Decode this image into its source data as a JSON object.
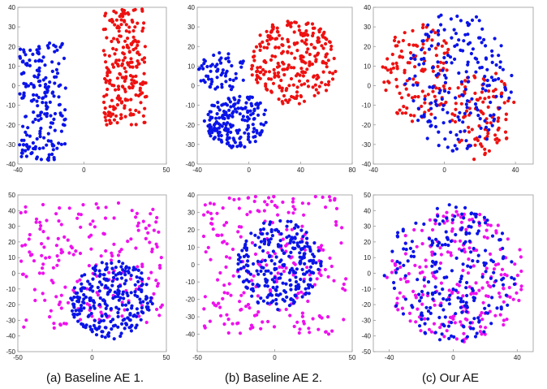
{
  "colors": {
    "blue": "#0a14e8",
    "red": "#ee1111",
    "magenta": "#ee11ee"
  },
  "captions": [
    "(a) Baseline AE 1.",
    "(b) Baseline AE 2.",
    "(c) Our AE"
  ],
  "chart_data": [
    {
      "type": "scatter",
      "xlim": [
        -40,
        50
      ],
      "ylim": [
        -40,
        40
      ],
      "xticks": [
        -40,
        0,
        50
      ],
      "yticks": [
        -40,
        -30,
        -20,
        -10,
        0,
        10,
        20,
        30,
        40
      ],
      "series": [
        {
          "color": "blue",
          "n": 200,
          "seed": 11,
          "clusters": [
            {
              "cx": -25,
              "cy": -8,
              "rx": 14,
              "ry": 30,
              "shape": "rect"
            }
          ]
        },
        {
          "color": "red",
          "n": 230,
          "seed": 12,
          "clusters": [
            {
              "cx": 25,
              "cy": 10,
              "rx": 13,
              "ry": 30,
              "shape": "rect"
            }
          ]
        }
      ]
    },
    {
      "type": "scatter",
      "xlim": [
        -40,
        80
      ],
      "ylim": [
        -40,
        40
      ],
      "xticks": [
        -40,
        0,
        40,
        80
      ],
      "yticks": [
        -40,
        -30,
        -20,
        -10,
        0,
        10,
        20,
        30,
        40
      ],
      "series": [
        {
          "color": "blue",
          "n": 250,
          "seed": 21,
          "clusters": [
            {
              "cx": -20,
              "cy": 7,
              "rx": 20,
              "ry": 10,
              "shape": "ellipse",
              "w": 0.25
            },
            {
              "cx": -10,
              "cy": -18,
              "rx": 25,
              "ry": 14,
              "shape": "ellipse",
              "w": 0.75
            }
          ]
        },
        {
          "color": "red",
          "n": 260,
          "seed": 22,
          "clusters": [
            {
              "cx": 35,
              "cy": 12,
              "rx": 34,
              "ry": 22,
              "shape": "ellipse"
            }
          ]
        }
      ]
    },
    {
      "type": "scatter",
      "xlim": [
        -40,
        50
      ],
      "ylim": [
        -40,
        40
      ],
      "xticks": [
        -40,
        0,
        40
      ],
      "yticks": [
        -40,
        -30,
        -20,
        -10,
        0,
        10,
        20,
        30,
        40
      ],
      "series": [
        {
          "color": "red",
          "n": 230,
          "seed": 31,
          "clusters": [
            {
              "cx": -15,
              "cy": 7,
              "rx": 20,
              "ry": 26,
              "shape": "ellipse",
              "w": 0.55
            },
            {
              "cx": 22,
              "cy": -15,
              "rx": 18,
              "ry": 24,
              "shape": "ellipse",
              "w": 0.45
            }
          ]
        },
        {
          "color": "blue",
          "n": 200,
          "seed": 32,
          "clusters": [
            {
              "cx": 8,
              "cy": 2,
              "rx": 30,
              "ry": 36,
              "shape": "ellipse"
            }
          ]
        }
      ]
    },
    {
      "type": "scatter",
      "xlim": [
        -50,
        50
      ],
      "ylim": [
        -50,
        50
      ],
      "xticks": [
        -50,
        0,
        50
      ],
      "yticks": [
        -50,
        -40,
        -30,
        -20,
        -10,
        0,
        10,
        20,
        30,
        40,
        50
      ],
      "series": [
        {
          "color": "magenta",
          "n": 200,
          "seed": 41,
          "clusters": [
            {
              "cx": 0,
              "cy": 5,
              "rx": 48,
              "ry": 40,
              "shape": "rect"
            }
          ]
        },
        {
          "color": "blue",
          "n": 260,
          "seed": 42,
          "clusters": [
            {
              "cx": 13,
              "cy": -17,
              "rx": 28,
              "ry": 25,
              "shape": "ellipse"
            }
          ]
        }
      ]
    },
    {
      "type": "scatter",
      "xlim": [
        -50,
        50
      ],
      "ylim": [
        -50,
        40
      ],
      "xticks": [
        -50,
        0,
        50
      ],
      "yticks": [
        -40,
        -30,
        -20,
        -10,
        0,
        10,
        20,
        30,
        40
      ],
      "series": [
        {
          "color": "magenta",
          "n": 230,
          "seed": 51,
          "clusters": [
            {
              "cx": 0,
              "cy": 0,
              "rx": 46,
              "ry": 40,
              "shape": "rect"
            }
          ]
        },
        {
          "color": "blue",
          "n": 260,
          "seed": 52,
          "clusters": [
            {
              "cx": 3,
              "cy": 0,
              "rx": 27,
              "ry": 26,
              "shape": "ellipse"
            }
          ]
        }
      ]
    },
    {
      "type": "scatter",
      "xlim": [
        -50,
        50
      ],
      "ylim": [
        -50,
        50
      ],
      "xticks": [
        -40,
        0,
        40
      ],
      "yticks": [
        -50,
        -40,
        -30,
        -20,
        -10,
        0,
        10,
        20,
        30,
        40,
        50
      ],
      "series": [
        {
          "color": "magenta",
          "n": 230,
          "seed": 61,
          "clusters": [
            {
              "cx": 2,
              "cy": -2,
              "rx": 44,
              "ry": 42,
              "shape": "ellipse"
            }
          ]
        },
        {
          "color": "blue",
          "n": 230,
          "seed": 62,
          "clusters": [
            {
              "cx": -2,
              "cy": 0,
              "rx": 42,
              "ry": 44,
              "shape": "ellipse"
            }
          ]
        }
      ]
    }
  ]
}
